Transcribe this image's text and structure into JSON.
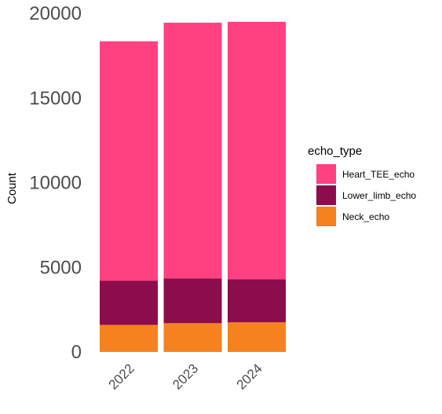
{
  "chart_data": {
    "type": "bar",
    "stacked": true,
    "categories": [
      "2022",
      "2023",
      "2024"
    ],
    "series": [
      {
        "name": "Neck_echo",
        "values": [
          1600,
          1700,
          1750
        ],
        "color": "#F5821F"
      },
      {
        "name": "Lower_limb_echo",
        "values": [
          2600,
          2650,
          2550
        ],
        "color": "#8B0D4B"
      },
      {
        "name": "Heart_TEE_echo",
        "values": [
          14150,
          15100,
          15200
        ],
        "color": "#FF4081"
      }
    ],
    "title": "",
    "xlabel": "",
    "ylabel": "Count",
    "ylim": [
      0,
      20000
    ],
    "yticks": [
      "0",
      "5000",
      "10000",
      "15000",
      "20000"
    ],
    "grid": false,
    "legend": {
      "title": "echo_type",
      "placement": "right",
      "entries": [
        "Heart_TEE_echo",
        "Lower_limb_echo",
        "Neck_echo"
      ]
    }
  }
}
